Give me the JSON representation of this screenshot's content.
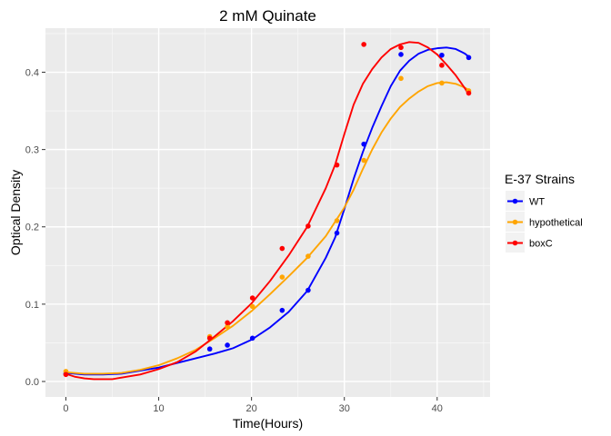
{
  "chart_data": {
    "type": "scatter",
    "title": "2 mM Quinate",
    "xlabel": "Time(Hours)",
    "ylabel": "Optical Density",
    "xlim": [
      -2.2,
      45.7
    ],
    "ylim": [
      -0.02,
      0.457
    ],
    "xticks": [
      0,
      10,
      20,
      30,
      40
    ],
    "yticks": [
      0.0,
      0.1,
      0.2,
      0.3,
      0.4
    ],
    "ytick_labels": [
      "0.0",
      "0.1",
      "0.2",
      "0.3",
      "0.4"
    ],
    "grid": true,
    "background": "#ebebeb",
    "legend": {
      "title": "E-37 Strains",
      "position": "right"
    },
    "series": [
      {
        "name": "WT",
        "color": "#0000ff",
        "points": [
          [
            0,
            0.01
          ],
          [
            15.5,
            0.042
          ],
          [
            17.4,
            0.047
          ],
          [
            20.1,
            0.056
          ],
          [
            23.3,
            0.092
          ],
          [
            26.1,
            0.118
          ],
          [
            29.2,
            0.192
          ],
          [
            32.1,
            0.307
          ],
          [
            36.1,
            0.423
          ],
          [
            40.5,
            0.422
          ],
          [
            43.4,
            0.419
          ]
        ],
        "smooth": [
          [
            0,
            0.011
          ],
          [
            2,
            0.009
          ],
          [
            4,
            0.009
          ],
          [
            6,
            0.01
          ],
          [
            8,
            0.014
          ],
          [
            10,
            0.018
          ],
          [
            12,
            0.024
          ],
          [
            14,
            0.03
          ],
          [
            16,
            0.036
          ],
          [
            18,
            0.043
          ],
          [
            20,
            0.054
          ],
          [
            22,
            0.07
          ],
          [
            24,
            0.09
          ],
          [
            26,
            0.117
          ],
          [
            28,
            0.16
          ],
          [
            29,
            0.186
          ],
          [
            30,
            0.223
          ],
          [
            31,
            0.262
          ],
          [
            32,
            0.297
          ],
          [
            33,
            0.328
          ],
          [
            34,
            0.356
          ],
          [
            35,
            0.382
          ],
          [
            36,
            0.402
          ],
          [
            37,
            0.415
          ],
          [
            38,
            0.424
          ],
          [
            39,
            0.429
          ],
          [
            40,
            0.431
          ],
          [
            41,
            0.432
          ],
          [
            42,
            0.43
          ],
          [
            43,
            0.424
          ],
          [
            43.4,
            0.42
          ]
        ]
      },
      {
        "name": "hypothetical",
        "color": "#ffa500",
        "points": [
          [
            0,
            0.013
          ],
          [
            15.5,
            0.058
          ],
          [
            17.4,
            0.071
          ],
          [
            20.1,
            0.097
          ],
          [
            23.3,
            0.135
          ],
          [
            26.1,
            0.162
          ],
          [
            29.2,
            0.208
          ],
          [
            32.1,
            0.286
          ],
          [
            36.1,
            0.392
          ],
          [
            40.5,
            0.386
          ],
          [
            43.4,
            0.376
          ]
        ],
        "smooth": [
          [
            0,
            0.012
          ],
          [
            2,
            0.01
          ],
          [
            4,
            0.01
          ],
          [
            6,
            0.011
          ],
          [
            8,
            0.015
          ],
          [
            10,
            0.021
          ],
          [
            12,
            0.03
          ],
          [
            14,
            0.041
          ],
          [
            16,
            0.056
          ],
          [
            18,
            0.072
          ],
          [
            20,
            0.091
          ],
          [
            22,
            0.113
          ],
          [
            24,
            0.136
          ],
          [
            26,
            0.16
          ],
          [
            28,
            0.188
          ],
          [
            30,
            0.225
          ],
          [
            31,
            0.248
          ],
          [
            32,
            0.275
          ],
          [
            33,
            0.3
          ],
          [
            34,
            0.322
          ],
          [
            35,
            0.34
          ],
          [
            36,
            0.355
          ],
          [
            37,
            0.366
          ],
          [
            38,
            0.375
          ],
          [
            39,
            0.382
          ],
          [
            40,
            0.386
          ],
          [
            41,
            0.387
          ],
          [
            42,
            0.385
          ],
          [
            43,
            0.38
          ],
          [
            43.4,
            0.377
          ]
        ]
      },
      {
        "name": "boxC",
        "color": "#ff0000",
        "points": [
          [
            0,
            0.009
          ],
          [
            15.5,
            0.056
          ],
          [
            17.4,
            0.076
          ],
          [
            20.1,
            0.108
          ],
          [
            23.3,
            0.172
          ],
          [
            26.1,
            0.201
          ],
          [
            29.2,
            0.28
          ],
          [
            32.1,
            0.436
          ],
          [
            36.1,
            0.432
          ],
          [
            40.5,
            0.409
          ],
          [
            43.4,
            0.373
          ]
        ],
        "smooth": [
          [
            0,
            0.01
          ],
          [
            1,
            0.006
          ],
          [
            2,
            0.004
          ],
          [
            3,
            0.003
          ],
          [
            4,
            0.003
          ],
          [
            5,
            0.003
          ],
          [
            6,
            0.005
          ],
          [
            8,
            0.009
          ],
          [
            10,
            0.016
          ],
          [
            12,
            0.025
          ],
          [
            14,
            0.039
          ],
          [
            16,
            0.058
          ],
          [
            18,
            0.078
          ],
          [
            20,
            0.101
          ],
          [
            22,
            0.13
          ],
          [
            24,
            0.163
          ],
          [
            26,
            0.2
          ],
          [
            28,
            0.25
          ],
          [
            29,
            0.28
          ],
          [
            30,
            0.32
          ],
          [
            31,
            0.358
          ],
          [
            32,
            0.385
          ],
          [
            33,
            0.404
          ],
          [
            34,
            0.419
          ],
          [
            35,
            0.43
          ],
          [
            36,
            0.436
          ],
          [
            37,
            0.439
          ],
          [
            38,
            0.438
          ],
          [
            39,
            0.432
          ],
          [
            40,
            0.423
          ],
          [
            41,
            0.41
          ],
          [
            42,
            0.396
          ],
          [
            43,
            0.379
          ],
          [
            43.4,
            0.371
          ]
        ]
      }
    ]
  }
}
